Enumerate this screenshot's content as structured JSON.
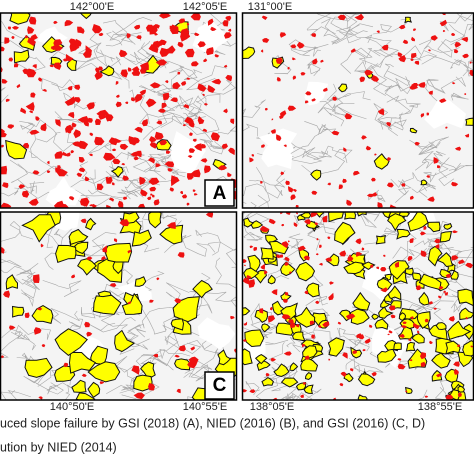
{
  "map": {
    "top_labels": [
      "142°00'E",
      "142°05'E",
      "131°00'E"
    ],
    "bottom_labels": [
      "140°50'E",
      "140°55'E",
      "138°05'E",
      "138°55'E"
    ],
    "panel_letters": [
      "A",
      "C"
    ]
  },
  "caption": {
    "lines": [
      "uced slope failure by GSI (2018) (A), NIED (2016) (B), and GSI (2016) (C, D)",
      "ution by NIED (2014)"
    ]
  }
}
